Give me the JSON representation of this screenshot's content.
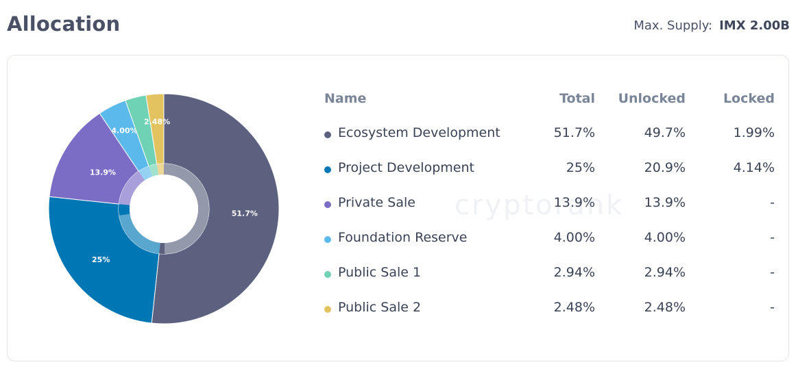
{
  "header": {
    "title": "Allocation",
    "supply_label": "Max. Supply:",
    "supply_value": "IMX 2.00B"
  },
  "watermark": "cryptorank",
  "table": {
    "headers": {
      "name": "Name",
      "total": "Total",
      "unlocked": "Unlocked",
      "locked": "Locked"
    }
  },
  "chart_data": {
    "type": "pie",
    "categories": [
      "Ecosystem Development",
      "Project Development",
      "Private Sale",
      "Foundation Reserve",
      "Public Sale 1",
      "Public Sale 2"
    ],
    "values": [
      51.7,
      25,
      13.9,
      4.0,
      2.94,
      2.48
    ],
    "labels": [
      "51.7%",
      "25%",
      "13.9%",
      "4.00%",
      "",
      "2.48%"
    ],
    "unlocked": [
      49.7,
      20.9,
      13.9,
      4.0,
      2.94,
      2.48
    ],
    "colors": [
      "#5b617e",
      "#0077b5",
      "#7b6cc6",
      "#5cb9ec",
      "#6fd2b4",
      "#e3c260"
    ],
    "rows": [
      {
        "name": "Ecosystem Development",
        "total": "51.7%",
        "unlocked": "49.7%",
        "locked": "1.99%"
      },
      {
        "name": "Project Development",
        "total": "25%",
        "unlocked": "20.9%",
        "locked": "4.14%"
      },
      {
        "name": "Private Sale",
        "total": "13.9%",
        "unlocked": "13.9%",
        "locked": "-"
      },
      {
        "name": "Foundation Reserve",
        "total": "4.00%",
        "unlocked": "4.00%",
        "locked": "-"
      },
      {
        "name": "Public Sale 1",
        "total": "2.94%",
        "unlocked": "2.94%",
        "locked": "-"
      },
      {
        "name": "Public Sale 2",
        "total": "2.48%",
        "unlocked": "2.48%",
        "locked": "-"
      }
    ]
  }
}
